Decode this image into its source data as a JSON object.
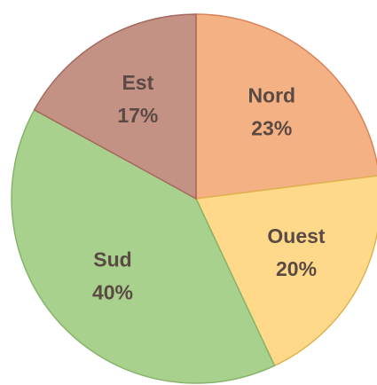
{
  "chart_data": {
    "type": "pie",
    "categories": [
      "Nord",
      "Ouest",
      "Sud",
      "Est"
    ],
    "values": [
      23,
      20,
      40,
      17
    ],
    "value_labels": [
      "23%",
      "20%",
      "40%",
      "17%"
    ],
    "colors": [
      "#f4b183",
      "#ffd98a",
      "#a9d18e",
      "#c49284"
    ],
    "edge_colors": [
      "#d9825a",
      "#e0b34f",
      "#86b36a",
      "#a5685c"
    ]
  }
}
